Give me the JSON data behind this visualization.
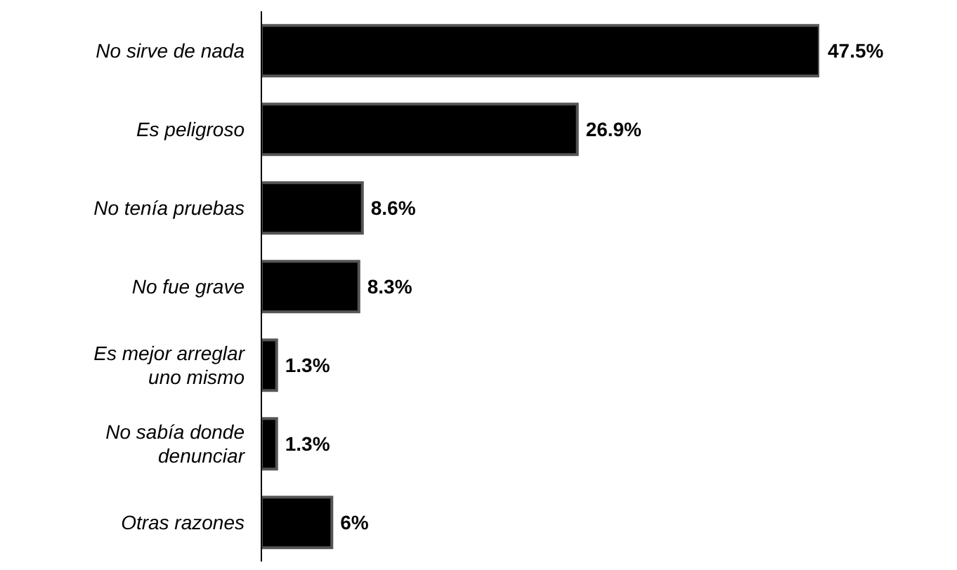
{
  "chart_data": {
    "type": "bar",
    "orientation": "horizontal",
    "categories": [
      "No sirve de nada",
      "Es peligroso",
      "No tenía pruebas",
      "No fue grave",
      "Es mejor arreglar uno mismo",
      "No sabía donde denunciar",
      "Otras razones"
    ],
    "values": [
      47.5,
      26.9,
      8.6,
      8.3,
      1.3,
      1.3,
      6
    ],
    "value_labels": [
      "47.5%",
      "26.9%",
      "8.6%",
      "8.3%",
      "1.3%",
      "1.3%",
      "6%"
    ],
    "color": "#000000"
  }
}
